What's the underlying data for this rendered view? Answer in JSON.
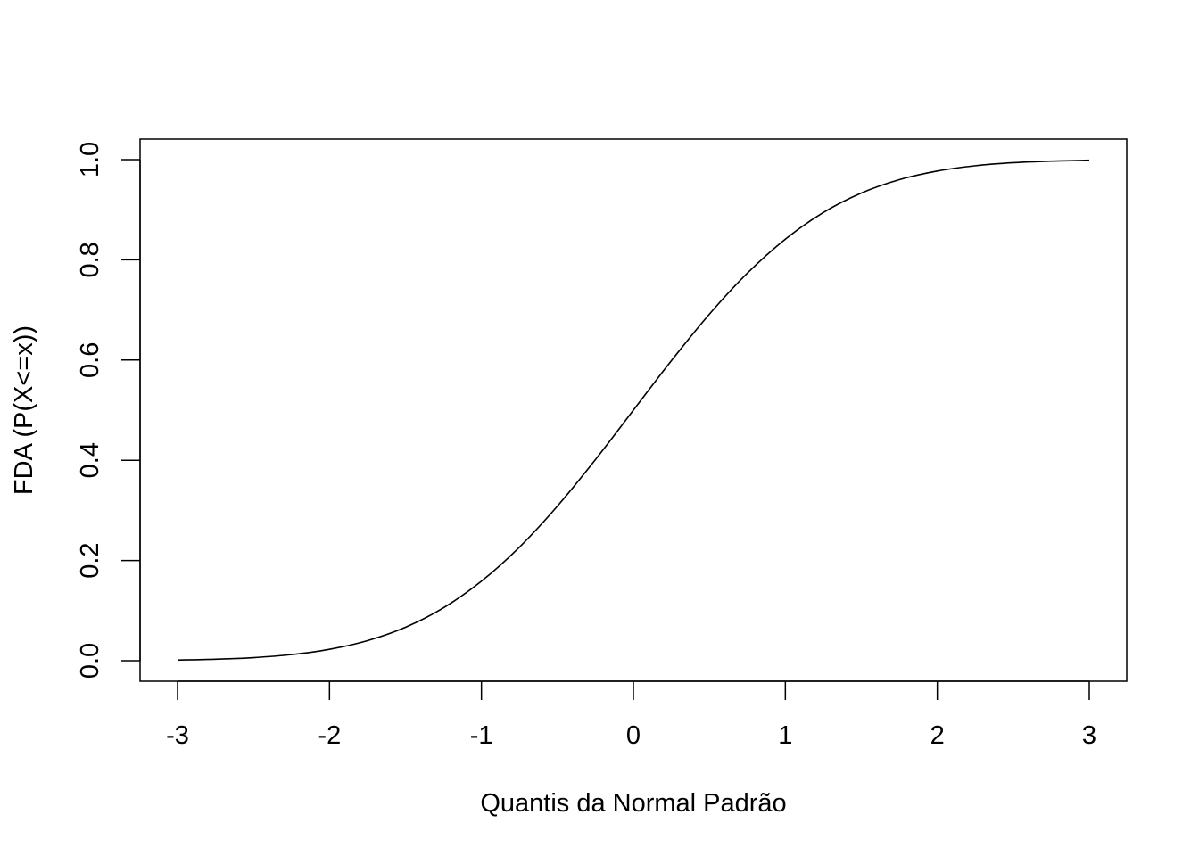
{
  "chart_data": {
    "type": "line",
    "title": "",
    "xlabel": "Quantis da Normal Padrão",
    "ylabel": "FDA (P(X<=x))",
    "xlim": [
      -3,
      3
    ],
    "ylim": [
      0,
      1
    ],
    "xticks": [
      -3,
      -2,
      -1,
      0,
      1,
      2,
      3
    ],
    "xtick_labels": [
      "-3",
      "-2",
      "-1",
      "0",
      "1",
      "2",
      "3"
    ],
    "yticks": [
      0,
      0.2,
      0.4,
      0.6,
      0.8,
      1
    ],
    "ytick_labels": [
      "0.0",
      "0.2",
      "0.4",
      "0.6",
      "0.8",
      "1.0"
    ],
    "grid": false,
    "series": [
      {
        "color": "#000000",
        "x": [
          -3.0,
          -2.75,
          -2.5,
          -2.25,
          -2.0,
          -1.75,
          -1.5,
          -1.25,
          -1.0,
          -0.75,
          -0.5,
          -0.25,
          0.0,
          0.25,
          0.5,
          0.75,
          1.0,
          1.25,
          1.5,
          1.75,
          2.0,
          2.25,
          2.5,
          2.75,
          3.0
        ],
        "y": [
          0.0013,
          0.003,
          0.0062,
          0.0122,
          0.0228,
          0.0401,
          0.0668,
          0.1056,
          0.1587,
          0.2266,
          0.3085,
          0.4013,
          0.5,
          0.5987,
          0.6915,
          0.7734,
          0.8413,
          0.8944,
          0.9332,
          0.9599,
          0.9772,
          0.9878,
          0.9938,
          0.997,
          0.9987
        ]
      }
    ]
  }
}
